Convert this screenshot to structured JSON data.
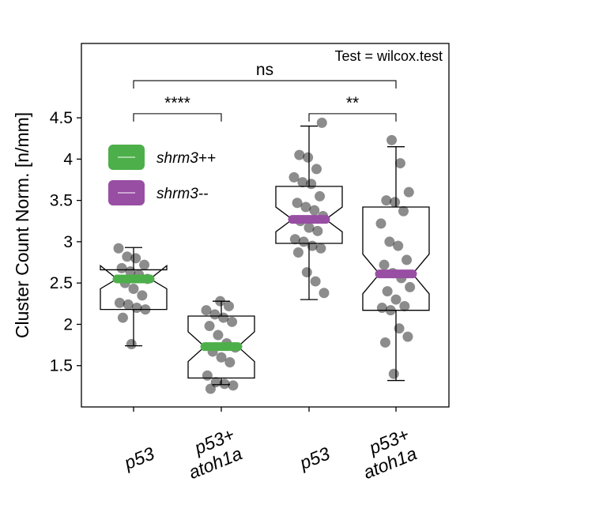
{
  "chart_data": {
    "type": "boxplot",
    "test_label": "Test = wilcox.test",
    "ylabel": "Cluster Count Norm. [n/mm]",
    "xlabel": "",
    "ylim": [
      1.0,
      5.4
    ],
    "yticks": [
      1.5,
      2.0,
      2.5,
      3.0,
      3.5,
      4.0,
      4.5
    ],
    "categories": [
      {
        "line1": "p53",
        "line2": ""
      },
      {
        "line1": "p53+",
        "line2": "atoh1a"
      },
      {
        "line1": "p53",
        "line2": ""
      },
      {
        "line1": "p53+",
        "line2": "atoh1a"
      }
    ],
    "legend": [
      {
        "label": "shrm3++",
        "color": "#4daf4a"
      },
      {
        "label": "shrm3--",
        "color": "#984ea3"
      }
    ],
    "boxes": [
      {
        "group": "shrm3++",
        "color": "#4daf4a",
        "whisker_low": 1.74,
        "q1": 2.18,
        "median": 2.55,
        "q3": 2.66,
        "whisker_high": 2.93,
        "notch_low": 2.43,
        "notch_high": 2.71
      },
      {
        "group": "shrm3++",
        "color": "#4daf4a",
        "whisker_low": 1.27,
        "q1": 1.35,
        "median": 1.73,
        "q3": 2.1,
        "whisker_high": 2.28,
        "notch_low": 1.55,
        "notch_high": 1.91
      },
      {
        "group": "shrm3--",
        "color": "#984ea3",
        "whisker_low": 2.3,
        "q1": 2.98,
        "median": 3.27,
        "q3": 3.67,
        "whisker_high": 4.4,
        "notch_low": 3.12,
        "notch_high": 3.42
      },
      {
        "group": "shrm3--",
        "color": "#984ea3",
        "whisker_low": 1.32,
        "q1": 2.17,
        "median": 2.61,
        "q3": 3.42,
        "whisker_high": 4.15,
        "notch_low": 2.37,
        "notch_high": 2.85
      }
    ],
    "points": [
      [
        2.92,
        2.82,
        2.8,
        2.72,
        2.68,
        2.64,
        2.6,
        2.55,
        2.5,
        2.43,
        2.35,
        2.26,
        2.24,
        2.2,
        2.18,
        2.08,
        1.76
      ],
      [
        2.28,
        2.22,
        2.17,
        2.12,
        2.08,
        2.03,
        1.98,
        1.87,
        1.77,
        1.72,
        1.67,
        1.6,
        1.54,
        1.38,
        1.3,
        1.28,
        1.26,
        1.22
      ],
      [
        4.44,
        4.05,
        4.02,
        3.88,
        3.78,
        3.72,
        3.7,
        3.55,
        3.47,
        3.42,
        3.38,
        3.31,
        3.25,
        3.17,
        3.13,
        3.03,
        3.0,
        2.95,
        2.92,
        2.87,
        2.63,
        2.52,
        2.38
      ],
      [
        4.23,
        3.95,
        3.6,
        3.5,
        3.48,
        3.37,
        3.22,
        3.0,
        2.95,
        2.78,
        2.72,
        2.62,
        2.56,
        2.45,
        2.4,
        2.3,
        2.22,
        2.2,
        2.17,
        1.95,
        1.85,
        1.78,
        1.4
      ]
    ],
    "comparisons": [
      {
        "from": 0,
        "to": 1,
        "label": "****",
        "y": 4.55
      },
      {
        "from": 2,
        "to": 3,
        "label": "**",
        "y": 4.55
      },
      {
        "from": 0,
        "to": 3,
        "label": "ns",
        "y": 4.95
      }
    ]
  }
}
